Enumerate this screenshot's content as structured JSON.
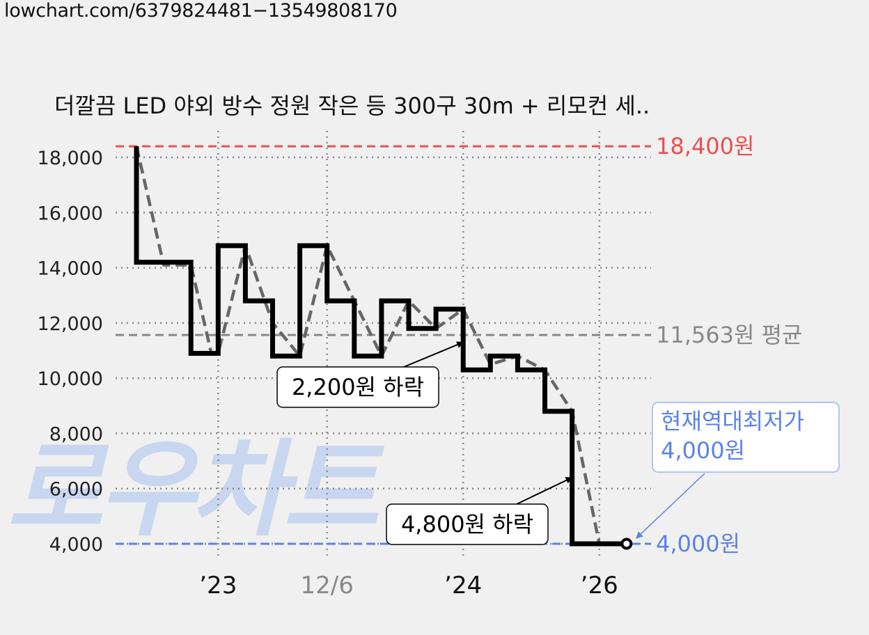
{
  "url": "lowchart.com/6379824481−13549808170",
  "watermark": "로우차트",
  "chart_data": {
    "type": "line",
    "title": "더깔끔 LED 야외 방수 정원 작은 등 300구 30m + 리모컨 세..",
    "xlabel": "",
    "ylabel": "",
    "ylim": [
      4000,
      18400
    ],
    "y_ticks": [
      {
        "value": 18000,
        "label": "18,000"
      },
      {
        "value": 16000,
        "label": "16,000"
      },
      {
        "value": 14000,
        "label": "14,000"
      },
      {
        "value": 12000,
        "label": "12,000"
      },
      {
        "value": 10000,
        "label": "10,000"
      },
      {
        "value": 8000,
        "label": "8,000"
      },
      {
        "value": 6000,
        "label": "6,000"
      },
      {
        "value": 4000,
        "label": "4,000"
      }
    ],
    "x_ticks": [
      {
        "label": "’23",
        "x": 3,
        "color": "#111111"
      },
      {
        "label": "12/6",
        "x": 7,
        "color": "#888888"
      },
      {
        "label": "’24",
        "x": 12,
        "color": "#111111"
      },
      {
        "label": "’26",
        "x": 17,
        "color": "#111111"
      }
    ],
    "series": [
      {
        "style": "step",
        "color": "#000000",
        "points": [
          [
            0,
            18400
          ],
          [
            0,
            14200
          ],
          [
            2,
            14200
          ],
          [
            2,
            10900
          ],
          [
            3,
            10900
          ],
          [
            3,
            14800
          ],
          [
            4,
            14800
          ],
          [
            4,
            12800
          ],
          [
            5,
            12800
          ],
          [
            5,
            10800
          ],
          [
            6,
            10800
          ],
          [
            6,
            14800
          ],
          [
            7,
            14800
          ],
          [
            7,
            12800
          ],
          [
            8,
            12800
          ],
          [
            8,
            10800
          ],
          [
            9,
            10800
          ],
          [
            9,
            12800
          ],
          [
            10,
            12800
          ],
          [
            10,
            11800
          ],
          [
            11,
            11800
          ],
          [
            11,
            12500
          ],
          [
            12,
            12500
          ],
          [
            12,
            10300
          ],
          [
            13,
            10300
          ],
          [
            13,
            10800
          ],
          [
            14,
            10800
          ],
          [
            14,
            10300
          ],
          [
            15,
            10300
          ],
          [
            15,
            8800
          ],
          [
            16,
            8800
          ],
          [
            16,
            4000
          ],
          [
            18,
            4000
          ]
        ]
      },
      {
        "style": "dashed",
        "color": "#666666",
        "points": [
          [
            0,
            18400
          ],
          [
            1,
            14100
          ],
          [
            2,
            14100
          ],
          [
            2.75,
            10900
          ],
          [
            3,
            10900
          ],
          [
            4,
            14800
          ],
          [
            5,
            12000
          ],
          [
            6,
            10800
          ],
          [
            7,
            14800
          ],
          [
            8,
            12800
          ],
          [
            9,
            10800
          ],
          [
            10,
            12800
          ],
          [
            11,
            11800
          ],
          [
            12,
            12500
          ],
          [
            13,
            10500
          ],
          [
            14,
            10800
          ],
          [
            15,
            10300
          ],
          [
            16,
            8800
          ],
          [
            17,
            4000
          ],
          [
            18,
            4000
          ]
        ]
      }
    ],
    "reference_lines": [
      {
        "value": 18400,
        "label": "18,400원",
        "color": "#e8504f"
      },
      {
        "value": 11563,
        "label": "11,563원 평균",
        "color": "#888888"
      },
      {
        "value": 4000,
        "label": "4,000원",
        "color": "#5a82e8"
      }
    ],
    "annotations": [
      {
        "text": "2,200원 하락",
        "arrow_to": [
          12,
          11300
        ]
      },
      {
        "text": "4,800원 하락",
        "arrow_to": [
          16,
          6400
        ]
      },
      {
        "text_lines": [
          "현재역대최저가",
          "4,000원"
        ],
        "arrow_to": [
          18,
          4000
        ],
        "color": "#5a82e8"
      }
    ],
    "grid": true,
    "legend": "none"
  }
}
